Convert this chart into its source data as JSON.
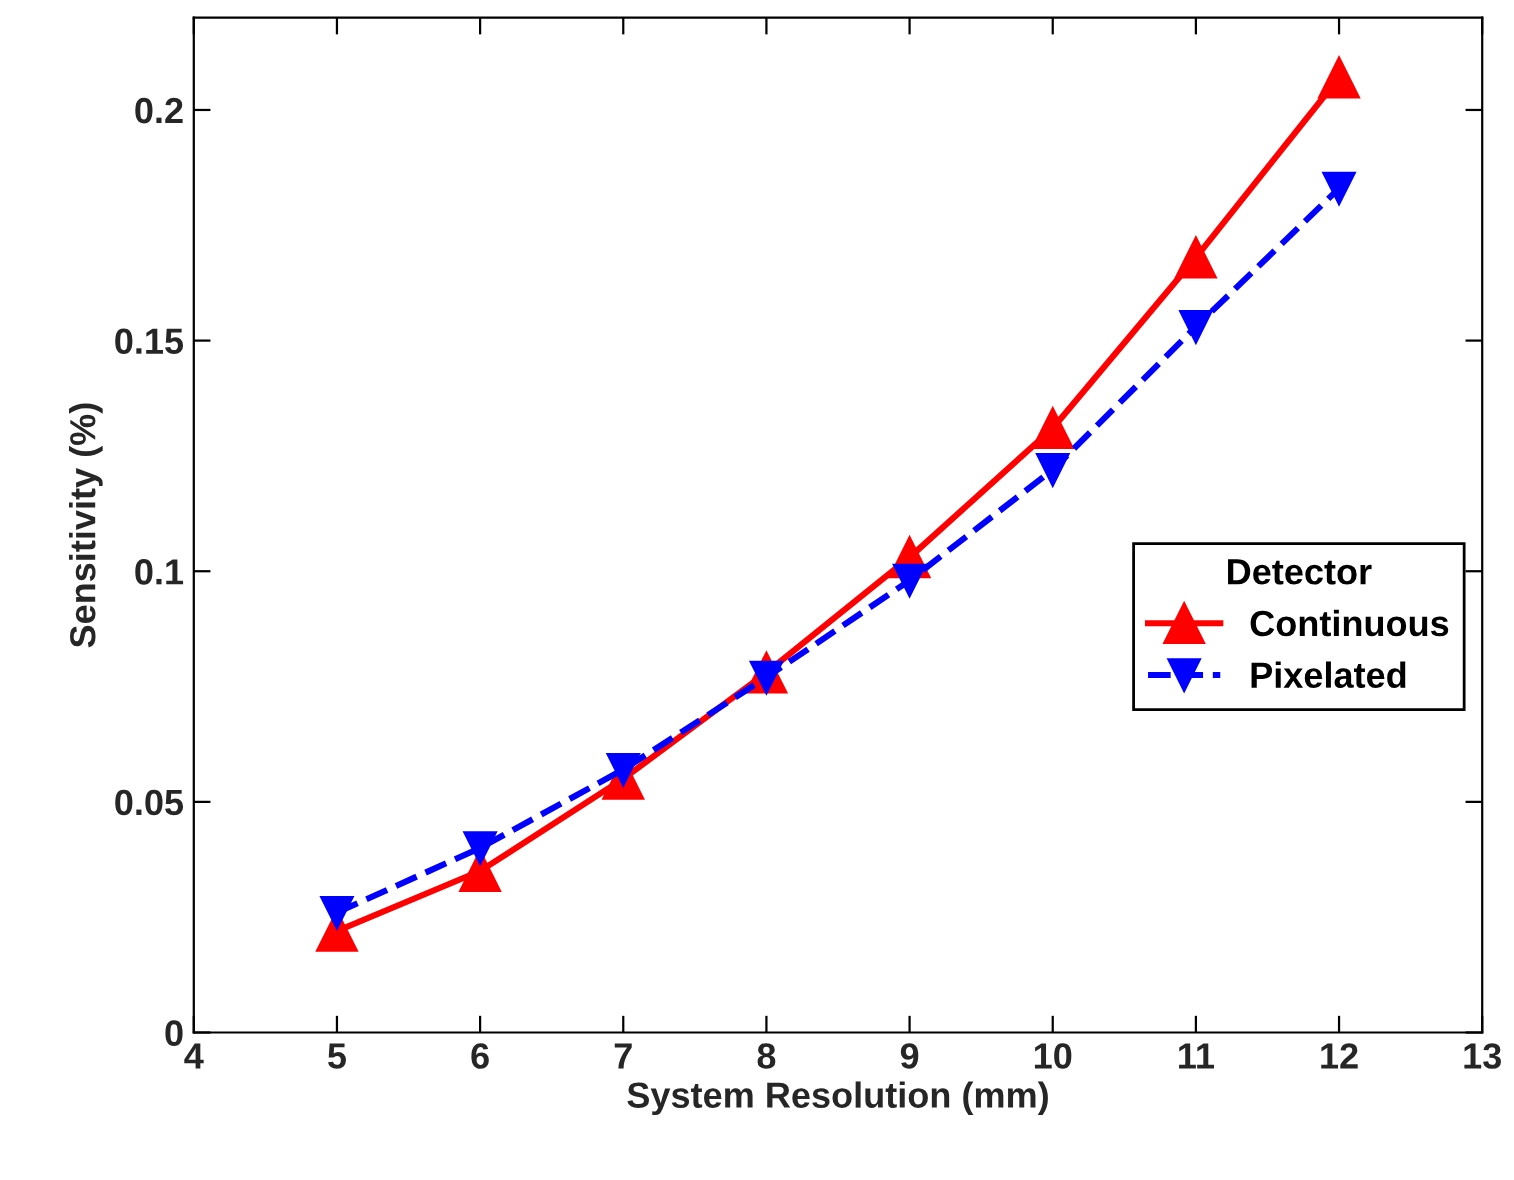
{
  "chart_data": {
    "type": "line",
    "xlabel": "System Resolution (mm)",
    "ylabel": "Sensitivity (%)",
    "legend_title": "Detector",
    "x": [
      5,
      6,
      7,
      8,
      9,
      10,
      11,
      12
    ],
    "series": [
      {
        "name": "Continuous",
        "color": "#ff0000",
        "values": [
          0.022,
          0.035,
          0.055,
          0.078,
          0.103,
          0.131,
          0.168,
          0.207
        ],
        "marker": "triangle",
        "line_style": "solid"
      },
      {
        "name": "Pixelated",
        "color": "#0000ff",
        "values": [
          0.026,
          0.04,
          0.057,
          0.077,
          0.098,
          0.122,
          0.153,
          0.183
        ],
        "marker": "triangle_down",
        "line_style": "dashed"
      }
    ],
    "xlim": [
      4,
      13
    ],
    "xticks": [
      4,
      5,
      6,
      7,
      8,
      9,
      10,
      11,
      12,
      13
    ],
    "ylim": [
      0,
      0.22
    ],
    "yticks": [
      {
        "value": 0,
        "label": "0"
      },
      {
        "value": 0.05,
        "label": "0.05"
      },
      {
        "value": 0.1,
        "label": "0.1"
      },
      {
        "value": 0.15,
        "label": "0.15"
      },
      {
        "value": 0.2,
        "label": "0.2"
      }
    ],
    "grid": false,
    "legend": "right"
  }
}
